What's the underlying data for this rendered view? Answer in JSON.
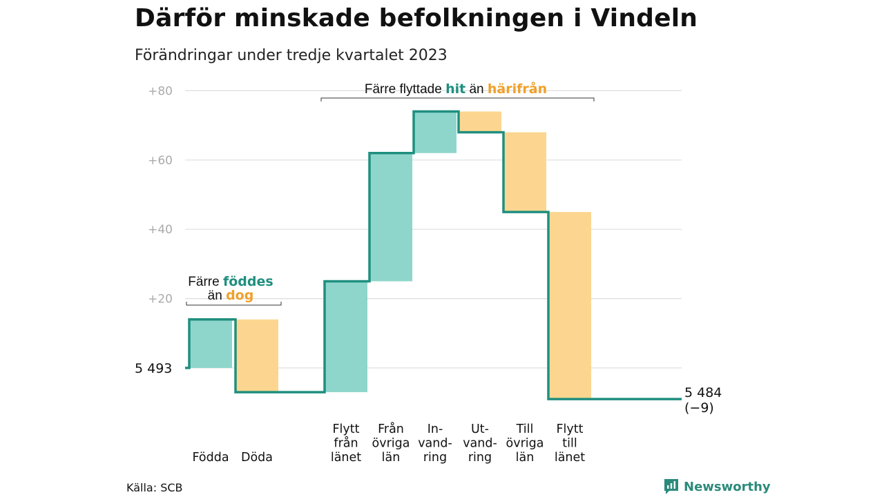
{
  "header": {
    "title": "Därför minskade befolkningen i Vindeln",
    "subtitle": "Förändringar under tredje kvartalet 2023"
  },
  "footer": {
    "source": "Källa: SCB",
    "logo_text": "Newsworthy"
  },
  "colors": {
    "inflow": "#8ed6cb",
    "outflow": "#fcd690",
    "line": "#1f8f7f",
    "teal_text": "#1f8f7f",
    "orange_text": "#f0a02a",
    "grid": "#dddddd",
    "tick": "#aaaaaa"
  },
  "chart_data": {
    "type": "waterfall",
    "start_label": "5  493",
    "end_label": [
      "5 484",
      "(−9)"
    ],
    "ylim": [
      -9,
      80
    ],
    "yticks": [
      {
        "value": 80,
        "label": "+80"
      },
      {
        "value": 60,
        "label": "+60"
      },
      {
        "value": 40,
        "label": "+40"
      },
      {
        "value": 20,
        "label": "+20"
      },
      {
        "value": 0,
        "label": ""
      }
    ],
    "steps": [
      {
        "label": [
          "Födda"
        ],
        "from": 0,
        "to": 14,
        "kind": "inflow",
        "group": 1
      },
      {
        "label": [
          "Döda"
        ],
        "from": 14,
        "to": -7,
        "kind": "outflow",
        "group": 1
      },
      {
        "label": [
          "Flytt",
          "från",
          "länet"
        ],
        "from": -7,
        "to": 25,
        "kind": "inflow",
        "group": 2
      },
      {
        "label": [
          "Från",
          "övriga",
          "län"
        ],
        "from": 25,
        "to": 62,
        "kind": "inflow",
        "group": 2
      },
      {
        "label": [
          "In-",
          "vand-",
          "ring"
        ],
        "from": 62,
        "to": 74,
        "kind": "inflow",
        "group": 2
      },
      {
        "label": [
          "Ut-",
          "vand-",
          "ring"
        ],
        "from": 74,
        "to": 68,
        "kind": "outflow",
        "group": 2
      },
      {
        "label": [
          "Till",
          "övriga",
          "län"
        ],
        "from": 68,
        "to": 45,
        "kind": "outflow",
        "group": 2
      },
      {
        "label": [
          "Flytt",
          "till",
          "länet"
        ],
        "from": 45,
        "to": -9,
        "kind": "outflow",
        "group": 2
      }
    ],
    "annotations": [
      {
        "id": "group1",
        "lines": [
          [
            {
              "text": "Färre ",
              "style": "plain"
            },
            {
              "text": "föddes",
              "style": "teal"
            }
          ],
          [
            {
              "text": "än ",
              "style": "plain"
            },
            {
              "text": "dog",
              "style": "orange"
            }
          ]
        ]
      },
      {
        "id": "group2",
        "lines": [
          [
            {
              "text": "Färre flyttade ",
              "style": "plain"
            },
            {
              "text": "hit",
              "style": "teal"
            },
            {
              "text": "  än ",
              "style": "plain"
            },
            {
              "text": "härifrån",
              "style": "orange"
            }
          ]
        ]
      }
    ]
  }
}
